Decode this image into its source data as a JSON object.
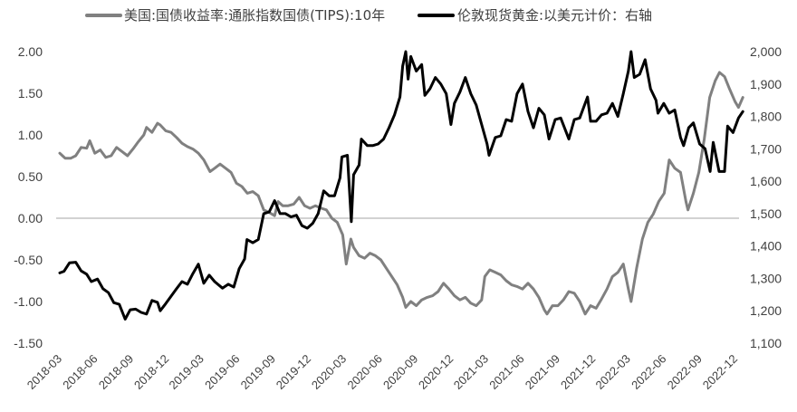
{
  "chart_data": {
    "type": "line",
    "legend": "top",
    "grid": false,
    "zero_line": true,
    "x_ticks": [
      "2018-03",
      "2018-06",
      "2018-09",
      "2018-12",
      "2019-03",
      "2019-06",
      "2019-09",
      "2019-12",
      "2020-03",
      "2020-06",
      "2020-09",
      "2020-12",
      "2021-03",
      "2021-06",
      "2021-09",
      "2021-12",
      "2022-03",
      "2022-06",
      "2022-09",
      "2022-12"
    ],
    "y_left": {
      "range": [
        -1.5,
        2.0
      ],
      "ticks": [
        "2.00",
        "1.50",
        "1.00",
        "0.50",
        "0.00",
        "-0.50",
        "-1.00",
        "-1.50"
      ]
    },
    "y_right": {
      "range": [
        1100,
        2000
      ],
      "ticks": [
        "2,000",
        "1,900",
        "1,800",
        "1,700",
        "1,600",
        "1,500",
        "1,400",
        "1,300",
        "1,200",
        "1,100"
      ]
    },
    "series": [
      {
        "name": "美国:国债收益率:通胀指数国债(TIPS):10年",
        "axis": "left",
        "color": "#808080",
        "points": [
          [
            "2018-03-01",
            0.78
          ],
          [
            "2018-03-08",
            0.75
          ],
          [
            "2018-03-15",
            0.72
          ],
          [
            "2018-03-29",
            0.72
          ],
          [
            "2018-04-11",
            0.75
          ],
          [
            "2018-04-25",
            0.85
          ],
          [
            "2018-05-09",
            0.84
          ],
          [
            "2018-05-17",
            0.93
          ],
          [
            "2018-05-30",
            0.78
          ],
          [
            "2018-06-13",
            0.82
          ],
          [
            "2018-06-27",
            0.73
          ],
          [
            "2018-07-11",
            0.75
          ],
          [
            "2018-07-25",
            0.85
          ],
          [
            "2018-08-08",
            0.8
          ],
          [
            "2018-08-22",
            0.75
          ],
          [
            "2018-09-05",
            0.83
          ],
          [
            "2018-09-19",
            0.92
          ],
          [
            "2018-10-03",
            1.0
          ],
          [
            "2018-10-10",
            1.09
          ],
          [
            "2018-10-24",
            1.03
          ],
          [
            "2018-11-07",
            1.14
          ],
          [
            "2018-11-14",
            1.12
          ],
          [
            "2018-11-28",
            1.05
          ],
          [
            "2018-12-12",
            1.03
          ],
          [
            "2018-12-26",
            0.97
          ],
          [
            "2019-01-09",
            0.9
          ],
          [
            "2019-01-23",
            0.86
          ],
          [
            "2019-02-06",
            0.83
          ],
          [
            "2019-02-20",
            0.78
          ],
          [
            "2019-03-06",
            0.7
          ],
          [
            "2019-03-22",
            0.56
          ],
          [
            "2019-04-03",
            0.6
          ],
          [
            "2019-04-17",
            0.65
          ],
          [
            "2019-05-01",
            0.6
          ],
          [
            "2019-05-15",
            0.55
          ],
          [
            "2019-05-29",
            0.42
          ],
          [
            "2019-06-12",
            0.38
          ],
          [
            "2019-06-26",
            0.3
          ],
          [
            "2019-07-10",
            0.32
          ],
          [
            "2019-07-24",
            0.27
          ],
          [
            "2019-08-07",
            0.1
          ],
          [
            "2019-08-21",
            0.07
          ],
          [
            "2019-09-04",
            0.03
          ],
          [
            "2019-09-13",
            0.2
          ],
          [
            "2019-09-25",
            0.15
          ],
          [
            "2019-10-09",
            0.15
          ],
          [
            "2019-10-23",
            0.17
          ],
          [
            "2019-11-06",
            0.25
          ],
          [
            "2019-11-20",
            0.15
          ],
          [
            "2019-12-04",
            0.12
          ],
          [
            "2019-12-18",
            0.15
          ],
          [
            "2020-01-02",
            0.12
          ],
          [
            "2020-01-15",
            0.1
          ],
          [
            "2020-01-29",
            0.0
          ],
          [
            "2020-02-12",
            -0.05
          ],
          [
            "2020-02-26",
            -0.2
          ],
          [
            "2020-03-06",
            -0.55
          ],
          [
            "2020-03-18",
            -0.25
          ],
          [
            "2020-03-25",
            -0.35
          ],
          [
            "2020-04-08",
            -0.45
          ],
          [
            "2020-04-22",
            -0.48
          ],
          [
            "2020-05-06",
            -0.42
          ],
          [
            "2020-05-20",
            -0.45
          ],
          [
            "2020-06-03",
            -0.5
          ],
          [
            "2020-06-17",
            -0.6
          ],
          [
            "2020-07-01",
            -0.7
          ],
          [
            "2020-07-15",
            -0.8
          ],
          [
            "2020-07-29",
            -0.95
          ],
          [
            "2020-08-06",
            -1.07
          ],
          [
            "2020-08-19",
            -1.0
          ],
          [
            "2020-09-02",
            -1.05
          ],
          [
            "2020-09-16",
            -0.98
          ],
          [
            "2020-09-30",
            -0.95
          ],
          [
            "2020-10-14",
            -0.93
          ],
          [
            "2020-10-28",
            -0.88
          ],
          [
            "2020-11-11",
            -0.78
          ],
          [
            "2020-11-25",
            -0.85
          ],
          [
            "2020-12-09",
            -0.93
          ],
          [
            "2020-12-23",
            -0.98
          ],
          [
            "2021-01-06",
            -0.95
          ],
          [
            "2021-01-20",
            -1.02
          ],
          [
            "2021-02-03",
            -1.05
          ],
          [
            "2021-02-17",
            -0.98
          ],
          [
            "2021-02-25",
            -0.7
          ],
          [
            "2021-03-10",
            -0.62
          ],
          [
            "2021-03-24",
            -0.65
          ],
          [
            "2021-04-07",
            -0.68
          ],
          [
            "2021-04-21",
            -0.75
          ],
          [
            "2021-05-05",
            -0.8
          ],
          [
            "2021-05-19",
            -0.82
          ],
          [
            "2021-06-02",
            -0.85
          ],
          [
            "2021-06-16",
            -0.78
          ],
          [
            "2021-06-30",
            -0.85
          ],
          [
            "2021-07-14",
            -0.95
          ],
          [
            "2021-07-28",
            -1.1
          ],
          [
            "2021-08-04",
            -1.15
          ],
          [
            "2021-08-18",
            -1.05
          ],
          [
            "2021-09-01",
            -1.05
          ],
          [
            "2021-09-15",
            -0.98
          ],
          [
            "2021-09-29",
            -0.88
          ],
          [
            "2021-10-13",
            -0.9
          ],
          [
            "2021-10-27",
            -1.0
          ],
          [
            "2021-11-10",
            -1.15
          ],
          [
            "2021-11-24",
            -1.05
          ],
          [
            "2021-12-08",
            -1.08
          ],
          [
            "2021-12-22",
            -0.97
          ],
          [
            "2022-01-05",
            -0.85
          ],
          [
            "2022-01-19",
            -0.7
          ],
          [
            "2022-02-02",
            -0.65
          ],
          [
            "2022-02-16",
            -0.55
          ],
          [
            "2022-03-01",
            -0.85
          ],
          [
            "2022-03-08",
            -1.0
          ],
          [
            "2022-03-22",
            -0.6
          ],
          [
            "2022-04-06",
            -0.25
          ],
          [
            "2022-04-20",
            -0.05
          ],
          [
            "2022-05-04",
            0.05
          ],
          [
            "2022-05-18",
            0.2
          ],
          [
            "2022-06-01",
            0.3
          ],
          [
            "2022-06-14",
            0.7
          ],
          [
            "2022-06-28",
            0.6
          ],
          [
            "2022-07-13",
            0.55
          ],
          [
            "2022-07-27",
            0.2
          ],
          [
            "2022-08-01",
            0.1
          ],
          [
            "2022-08-15",
            0.3
          ],
          [
            "2022-08-29",
            0.55
          ],
          [
            "2022-09-12",
            0.95
          ],
          [
            "2022-09-26",
            1.45
          ],
          [
            "2022-10-10",
            1.65
          ],
          [
            "2022-10-21",
            1.75
          ],
          [
            "2022-11-03",
            1.7
          ],
          [
            "2022-11-16",
            1.55
          ],
          [
            "2022-11-30",
            1.4
          ],
          [
            "2022-12-09",
            1.33
          ],
          [
            "2022-12-20",
            1.45
          ]
        ]
      },
      {
        "name": "伦敦现货黄金:以美元计价：右轴",
        "axis": "right",
        "color": "#000000",
        "points": [
          [
            "2018-03-01",
            1317
          ],
          [
            "2018-03-12",
            1322
          ],
          [
            "2018-03-26",
            1348
          ],
          [
            "2018-04-11",
            1350
          ],
          [
            "2018-04-25",
            1323
          ],
          [
            "2018-05-09",
            1313
          ],
          [
            "2018-05-21",
            1290
          ],
          [
            "2018-06-06",
            1298
          ],
          [
            "2018-06-20",
            1268
          ],
          [
            "2018-07-04",
            1256
          ],
          [
            "2018-07-18",
            1225
          ],
          [
            "2018-08-01",
            1220
          ],
          [
            "2018-08-16",
            1174
          ],
          [
            "2018-08-29",
            1203
          ],
          [
            "2018-09-12",
            1205
          ],
          [
            "2018-09-26",
            1195
          ],
          [
            "2018-10-10",
            1190
          ],
          [
            "2018-10-24",
            1232
          ],
          [
            "2018-11-07",
            1226
          ],
          [
            "2018-11-14",
            1200
          ],
          [
            "2018-11-28",
            1222
          ],
          [
            "2018-12-12",
            1245
          ],
          [
            "2018-12-26",
            1268
          ],
          [
            "2019-01-09",
            1290
          ],
          [
            "2019-01-23",
            1282
          ],
          [
            "2019-02-06",
            1315
          ],
          [
            "2019-02-20",
            1344
          ],
          [
            "2019-03-06",
            1285
          ],
          [
            "2019-03-20",
            1310
          ],
          [
            "2019-04-03",
            1290
          ],
          [
            "2019-04-23",
            1270
          ],
          [
            "2019-05-08",
            1282
          ],
          [
            "2019-05-22",
            1273
          ],
          [
            "2019-06-05",
            1330
          ],
          [
            "2019-06-19",
            1360
          ],
          [
            "2019-06-25",
            1420
          ],
          [
            "2019-07-10",
            1410
          ],
          [
            "2019-07-24",
            1420
          ],
          [
            "2019-08-07",
            1500
          ],
          [
            "2019-08-21",
            1505
          ],
          [
            "2019-09-04",
            1540
          ],
          [
            "2019-09-18",
            1500
          ],
          [
            "2019-10-02",
            1500
          ],
          [
            "2019-10-16",
            1490
          ],
          [
            "2019-10-30",
            1495
          ],
          [
            "2019-11-13",
            1463
          ],
          [
            "2019-11-27",
            1455
          ],
          [
            "2019-12-11",
            1470
          ],
          [
            "2019-12-25",
            1500
          ],
          [
            "2020-01-08",
            1570
          ],
          [
            "2020-01-22",
            1555
          ],
          [
            "2020-02-05",
            1555
          ],
          [
            "2020-02-19",
            1610
          ],
          [
            "2020-02-24",
            1675
          ],
          [
            "2020-03-09",
            1680
          ],
          [
            "2020-03-19",
            1475
          ],
          [
            "2020-03-25",
            1620
          ],
          [
            "2020-04-08",
            1650
          ],
          [
            "2020-04-14",
            1730
          ],
          [
            "2020-04-29",
            1710
          ],
          [
            "2020-05-13",
            1710
          ],
          [
            "2020-05-27",
            1715
          ],
          [
            "2020-06-10",
            1730
          ],
          [
            "2020-06-24",
            1765
          ],
          [
            "2020-07-08",
            1805
          ],
          [
            "2020-07-22",
            1860
          ],
          [
            "2020-07-29",
            1955
          ],
          [
            "2020-08-06",
            2000
          ],
          [
            "2020-08-12",
            1915
          ],
          [
            "2020-08-19",
            1985
          ],
          [
            "2020-09-02",
            1940
          ],
          [
            "2020-09-16",
            1960
          ],
          [
            "2020-09-24",
            1865
          ],
          [
            "2020-10-07",
            1885
          ],
          [
            "2020-10-21",
            1920
          ],
          [
            "2020-11-04",
            1900
          ],
          [
            "2020-11-18",
            1870
          ],
          [
            "2020-11-30",
            1775
          ],
          [
            "2020-12-09",
            1840
          ],
          [
            "2020-12-23",
            1875
          ],
          [
            "2021-01-06",
            1920
          ],
          [
            "2021-01-20",
            1870
          ],
          [
            "2021-02-03",
            1835
          ],
          [
            "2021-02-17",
            1775
          ],
          [
            "2021-03-03",
            1715
          ],
          [
            "2021-03-08",
            1680
          ],
          [
            "2021-03-24",
            1735
          ],
          [
            "2021-04-07",
            1740
          ],
          [
            "2021-04-21",
            1790
          ],
          [
            "2021-05-05",
            1785
          ],
          [
            "2021-05-19",
            1870
          ],
          [
            "2021-06-02",
            1900
          ],
          [
            "2021-06-16",
            1815
          ],
          [
            "2021-06-30",
            1765
          ],
          [
            "2021-07-14",
            1825
          ],
          [
            "2021-07-28",
            1805
          ],
          [
            "2021-08-09",
            1730
          ],
          [
            "2021-08-25",
            1790
          ],
          [
            "2021-09-08",
            1795
          ],
          [
            "2021-09-29",
            1730
          ],
          [
            "2021-10-13",
            1790
          ],
          [
            "2021-10-27",
            1795
          ],
          [
            "2021-11-16",
            1860
          ],
          [
            "2021-11-24",
            1785
          ],
          [
            "2021-12-08",
            1785
          ],
          [
            "2021-12-22",
            1805
          ],
          [
            "2022-01-05",
            1810
          ],
          [
            "2022-01-19",
            1840
          ],
          [
            "2022-02-02",
            1800
          ],
          [
            "2022-02-16",
            1870
          ],
          [
            "2022-03-01",
            1940
          ],
          [
            "2022-03-08",
            2000
          ],
          [
            "2022-03-16",
            1920
          ],
          [
            "2022-03-30",
            1930
          ],
          [
            "2022-04-13",
            1975
          ],
          [
            "2022-04-27",
            1885
          ],
          [
            "2022-05-11",
            1850
          ],
          [
            "2022-05-16",
            1810
          ],
          [
            "2022-05-31",
            1840
          ],
          [
            "2022-06-14",
            1810
          ],
          [
            "2022-06-28",
            1820
          ],
          [
            "2022-07-13",
            1735
          ],
          [
            "2022-07-21",
            1710
          ],
          [
            "2022-08-03",
            1765
          ],
          [
            "2022-08-15",
            1780
          ],
          [
            "2022-08-31",
            1715
          ],
          [
            "2022-09-14",
            1700
          ],
          [
            "2022-09-27",
            1630
          ],
          [
            "2022-10-05",
            1720
          ],
          [
            "2022-10-20",
            1630
          ],
          [
            "2022-11-03",
            1630
          ],
          [
            "2022-11-11",
            1770
          ],
          [
            "2022-11-25",
            1750
          ],
          [
            "2022-12-09",
            1795
          ],
          [
            "2022-12-20",
            1815
          ]
        ]
      }
    ]
  }
}
